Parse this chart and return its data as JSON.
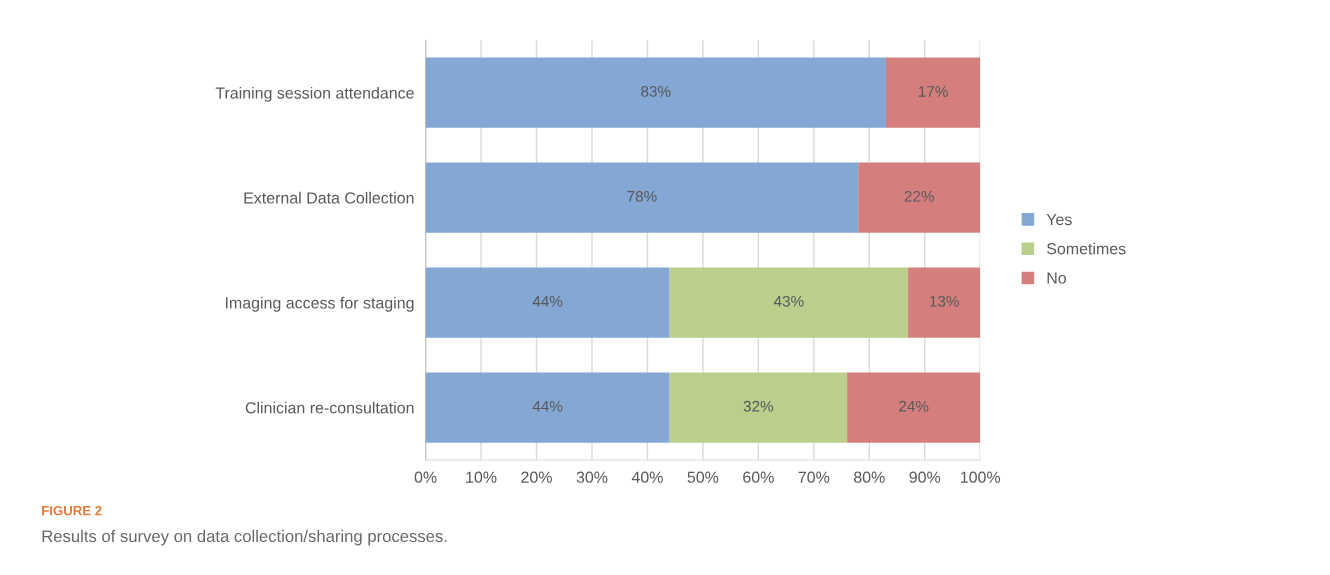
{
  "chart_data": {
    "type": "bar",
    "orientation": "horizontal",
    "stacked": true,
    "categories": [
      "Training session attendance",
      "External Data Collection",
      "Imaging access for staging",
      "Clinician re-consultation"
    ],
    "series": [
      {
        "name": "Yes",
        "color": "#84a7d3",
        "values": [
          83,
          78,
          44,
          44
        ],
        "value_labels": [
          "83%",
          "78%",
          "44%",
          "44%"
        ]
      },
      {
        "name": "Sometimes",
        "color": "#b9cf8b",
        "values": [
          0,
          0,
          43,
          32
        ],
        "value_labels": [
          null,
          null,
          "43%",
          "32%"
        ]
      },
      {
        "name": "No",
        "color": "#d47f7e",
        "values": [
          17,
          22,
          13,
          24
        ],
        "value_labels": [
          "17%",
          "22%",
          "13%",
          "24%"
        ]
      }
    ],
    "xlim": [
      0,
      100
    ],
    "xticks": [
      {
        "value": 0,
        "label": "0%"
      },
      {
        "value": 10,
        "label": "10%"
      },
      {
        "value": 20,
        "label": "20%"
      },
      {
        "value": 30,
        "label": "30%"
      },
      {
        "value": 40,
        "label": "40%"
      },
      {
        "value": 50,
        "label": "50%"
      },
      {
        "value": 60,
        "label": "60%"
      },
      {
        "value": 70,
        "label": "70%"
      },
      {
        "value": 80,
        "label": "80%"
      },
      {
        "value": 90,
        "label": "90%"
      },
      {
        "value": 100,
        "label": "100%"
      }
    ],
    "grid": "x",
    "legend": "right",
    "annotations": [
      "FIGURE 2",
      "Results of survey on data collection/sharing processes."
    ]
  }
}
